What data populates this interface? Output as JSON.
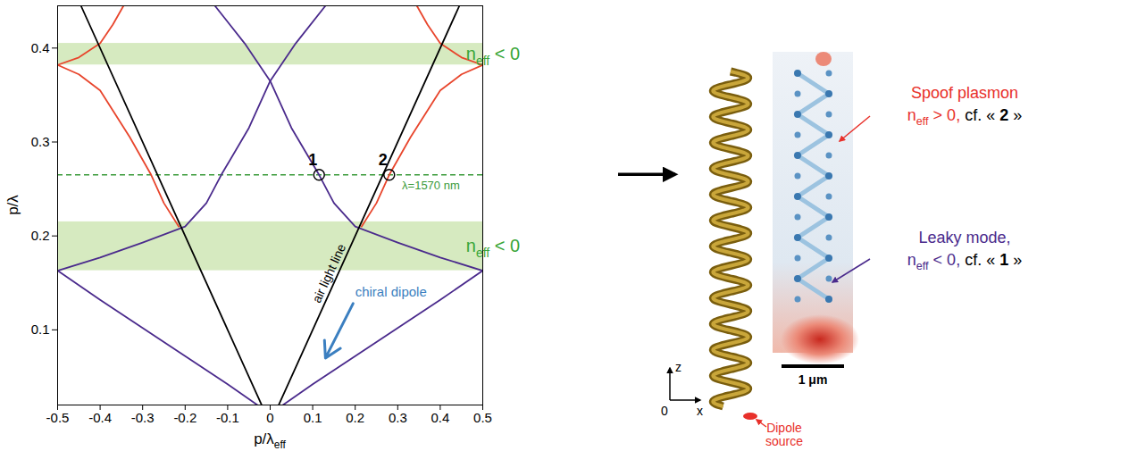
{
  "chart_data": {
    "type": "line",
    "grid": false,
    "xlim": [
      -0.5,
      0.5
    ],
    "ylim": [
      0.02,
      0.445
    ],
    "xticks": [
      -0.5,
      -0.4,
      -0.3,
      -0.2,
      -0.1,
      0,
      0.1,
      0.2,
      0.3,
      0.4,
      0.5
    ],
    "yticks": [
      0.1,
      0.2,
      0.3,
      0.4
    ],
    "x_label": [
      {
        "t": "p/λ"
      },
      {
        "t": "eff",
        "sub": true
      }
    ],
    "y_label": [
      {
        "t": "p/λ"
      }
    ],
    "series": [
      {
        "color": "#4a2a8c",
        "points": [
          [
            0.03,
            0.02
          ],
          [
            0.1,
            0.042
          ],
          [
            0.2,
            0.072
          ],
          [
            0.3,
            0.102
          ],
          [
            0.4,
            0.132
          ],
          [
            0.5,
            0.163
          ]
        ]
      },
      {
        "color": "#4a2a8c",
        "points": [
          [
            -0.5,
            0.163
          ],
          [
            -0.4,
            0.132
          ],
          [
            -0.3,
            0.102
          ],
          [
            -0.2,
            0.072
          ],
          [
            -0.1,
            0.042
          ],
          [
            -0.03,
            0.02
          ]
        ]
      },
      {
        "color": "#4a2a8c",
        "points": [
          [
            0.5,
            0.163
          ],
          [
            0.4,
            0.177
          ],
          [
            0.3,
            0.193
          ],
          [
            0.2,
            0.21
          ],
          [
            0.15,
            0.235
          ],
          [
            0.115,
            0.265
          ],
          [
            0.05,
            0.315
          ],
          [
            0,
            0.365
          ],
          [
            -0.06,
            0.405
          ],
          [
            -0.13,
            0.445
          ]
        ]
      },
      {
        "color": "#4a2a8c",
        "points": [
          [
            -0.5,
            0.163
          ],
          [
            -0.4,
            0.177
          ],
          [
            -0.3,
            0.193
          ],
          [
            -0.2,
            0.21
          ],
          [
            -0.15,
            0.235
          ],
          [
            -0.115,
            0.265
          ],
          [
            -0.05,
            0.315
          ],
          [
            0,
            0.365
          ],
          [
            0.06,
            0.405
          ],
          [
            0.13,
            0.445
          ]
        ]
      },
      {
        "color": "#e8452c",
        "points": [
          [
            0.215,
            0.21
          ],
          [
            0.25,
            0.235
          ],
          [
            0.28,
            0.265
          ],
          [
            0.33,
            0.305
          ],
          [
            0.4,
            0.355
          ],
          [
            0.45,
            0.372
          ],
          [
            0.5,
            0.382
          ]
        ]
      },
      {
        "color": "#e8452c",
        "points": [
          [
            -0.215,
            0.21
          ],
          [
            -0.25,
            0.235
          ],
          [
            -0.28,
            0.265
          ],
          [
            -0.33,
            0.305
          ],
          [
            -0.4,
            0.355
          ],
          [
            -0.45,
            0.372
          ],
          [
            -0.5,
            0.382
          ]
        ]
      },
      {
        "color": "#e8452c",
        "points": [
          [
            0.5,
            0.382
          ],
          [
            0.45,
            0.39
          ],
          [
            0.4,
            0.405
          ],
          [
            0.37,
            0.425
          ],
          [
            0.345,
            0.445
          ]
        ]
      },
      {
        "color": "#e8452c",
        "points": [
          [
            -0.5,
            0.382
          ],
          [
            -0.45,
            0.39
          ],
          [
            -0.4,
            0.405
          ],
          [
            -0.37,
            0.425
          ],
          [
            -0.345,
            0.445
          ]
        ]
      },
      {
        "color": "#000000",
        "points": [
          [
            0.02,
            0.02
          ],
          [
            0.445,
            0.445
          ]
        ]
      },
      {
        "color": "#000000",
        "points": [
          [
            -0.02,
            0.02
          ],
          [
            -0.445,
            0.445
          ]
        ]
      }
    ],
    "bands": [
      {
        "y": [
          0.382,
          0.405
        ],
        "color": "#d6eac0",
        "label": [
          {
            "t": "n"
          },
          {
            "t": "eff",
            "sub": true
          },
          {
            "t": " < 0"
          }
        ]
      },
      {
        "y": [
          0.163,
          0.215
        ],
        "color": "#d6eac0",
        "label": [
          {
            "t": "n"
          },
          {
            "t": "eff",
            "sub": true
          },
          {
            "t": " < 0"
          }
        ]
      }
    ],
    "band_label_color": "#3aa639",
    "wavelength_line": {
      "y": 0.265,
      "label": "λ=1570 nm",
      "color": "#3a9a3a"
    },
    "markers": [
      {
        "label": "1",
        "x": 0.115,
        "y": 0.265
      },
      {
        "label": "2",
        "x": 0.28,
        "y": 0.265
      }
    ],
    "annotations": [
      {
        "text": "air light line",
        "color": "#000000"
      },
      {
        "text": "chiral dipole",
        "color": "#3b7fc0"
      }
    ]
  },
  "illustration": {
    "axes": {
      "z": "z",
      "x": "x",
      "origin": "0"
    },
    "dipole_label": [
      "Dipole",
      "source"
    ],
    "dipole_color": "#e8302a",
    "scale_bar": "1 μm",
    "labels": [
      {
        "color": "#e8302a",
        "lines": [
          [
            {
              "t": "Spoof plasmon"
            }
          ],
          [
            {
              "t": "n"
            },
            {
              "t": "eff",
              "sub": true
            },
            {
              "t": " > 0, "
            },
            {
              "t": "cf. « ",
              "color": "#000000"
            },
            {
              "t": "2",
              "color": "#000000",
              "bold": true
            },
            {
              "t": " »",
              "color": "#000000"
            }
          ]
        ]
      },
      {
        "color": "#4a2a8c",
        "lines": [
          [
            {
              "t": "Leaky mode,"
            }
          ],
          [
            {
              "t": "n"
            },
            {
              "t": "eff",
              "sub": true
            },
            {
              "t": " < 0, "
            },
            {
              "t": "cf. « ",
              "color": "#000000"
            },
            {
              "t": "1",
              "color": "#000000",
              "bold": true
            },
            {
              "t": " »",
              "color": "#000000"
            }
          ]
        ]
      }
    ]
  }
}
